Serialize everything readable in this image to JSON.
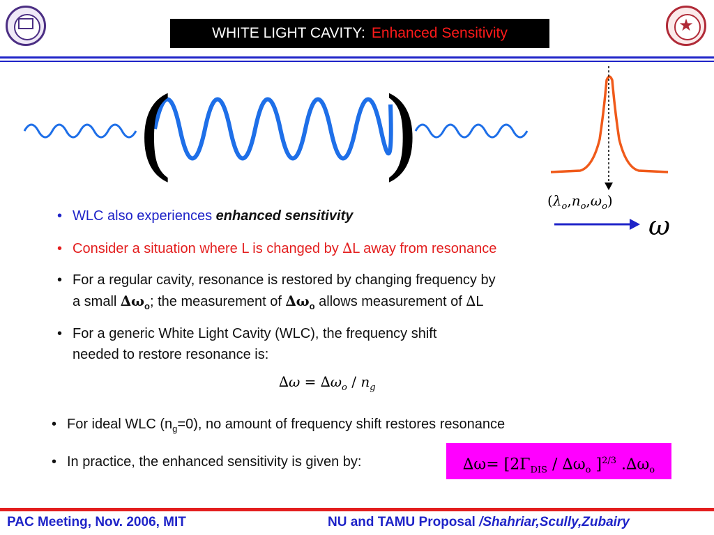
{
  "header": {
    "title_main": "WHITE LIGHT CAVITY:",
    "title_accent": "Enhanced Sensitivity"
  },
  "colors": {
    "rule_blue": "#1f24c8",
    "accent_red": "#e31e1e",
    "wave_blue": "#1e6fe8",
    "peak_orange": "#f05a1a",
    "highlight_magenta": "#ff00ff"
  },
  "logos": {
    "left": "northwestern-seal-icon",
    "right": "tamu-seal-icon"
  },
  "diagram": {
    "left_paren": "(",
    "right_paren": ")",
    "peak_label": {
      "open": "(",
      "lambda": "λ",
      "sub1": "o",
      "comma1": ",",
      "n": "n",
      "sub2": "o",
      "comma2": ",",
      "omega": "ω",
      "sub3": "o",
      "close": ")"
    },
    "axis_label": "ω"
  },
  "bullets": {
    "b1": {
      "dot": "•",
      "text": "WLC also experiences ",
      "emph": "enhanced sensitivity"
    },
    "b2": {
      "dot": "•",
      "text1": "Consider a situation where L is changed by ",
      "delta": "∆",
      "text2": "L away from resonance"
    },
    "b3": {
      "dot": "•",
      "line1": "For a regular cavity, resonance is restored by changing frequency by",
      "line2_a": "a small ",
      "dw": "∆ω",
      "sub": "o",
      "line2_b": ";  the measurement of ",
      "dw2": "∆ω",
      "sub2": "o",
      "line2_c": " allows measurement of ",
      "delta": "∆",
      "line2_d": "L"
    },
    "b4": {
      "dot": "•",
      "line1": "For a generic White Light Cavity (WLC), the frequency shift",
      "line2": "needed to restore resonance is:"
    },
    "b5": {
      "dot": "•",
      "text1": "For ideal WLC (n",
      "sub": "g",
      "text2": "=0), no amount of frequency shift restores resonance"
    },
    "b6": {
      "dot": "•",
      "text": "In practice, the enhanced sensitivity is given by:"
    }
  },
  "equation1": {
    "lhs": "∆",
    "lhs_omega": "ω",
    "eq": " = ",
    "rhs_delta": "∆",
    "rhs_omega": "ω",
    "rhs_sub": "o",
    "slash": " / ",
    "n": "n",
    "n_sub": "g"
  },
  "equation2": {
    "lhs": "∆ω",
    "eq": "= [2Γ",
    "sub_dis": "DIS",
    "mid": " / ∆ω",
    "sub_o": "o",
    "bracket": " ]",
    "power": "2/3",
    "tail": " .∆ω",
    "sub_o2": "o"
  },
  "footer": {
    "left": "PAC Meeting, Nov. 2006, MIT",
    "right_a": "NU and TAMU Proposal ",
    "right_b": "/Shahriar,Scully,Zubairy"
  }
}
